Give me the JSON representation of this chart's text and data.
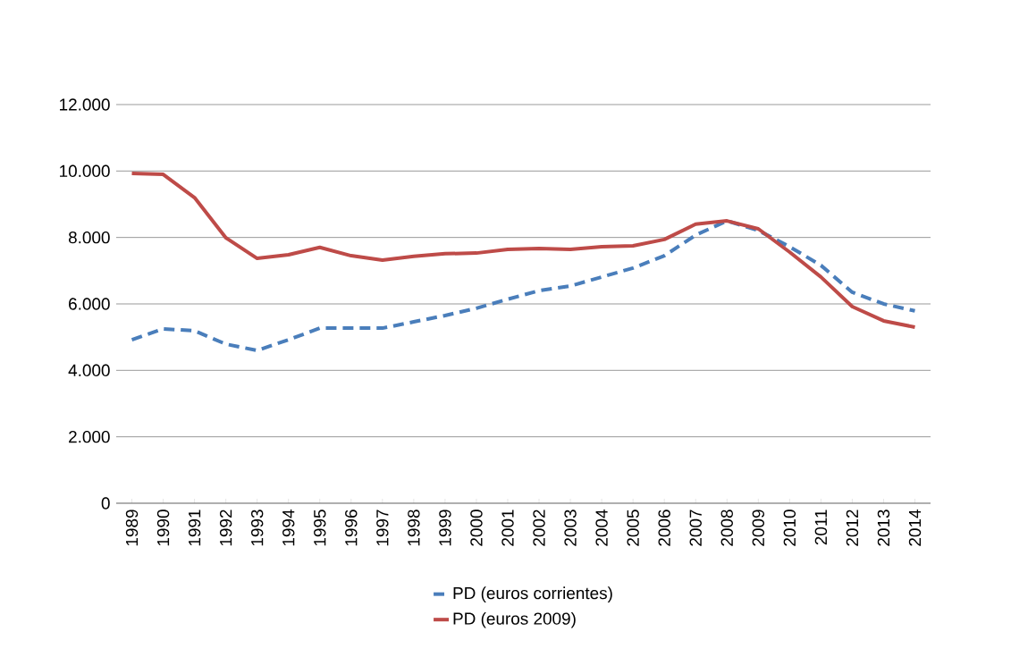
{
  "chart_data": {
    "type": "line",
    "categories": [
      "1989",
      "1990",
      "1991",
      "1992",
      "1993",
      "1994",
      "1995",
      "1996",
      "1997",
      "1998",
      "1999",
      "2000",
      "2001",
      "2002",
      "2003",
      "2004",
      "2005",
      "2006",
      "2007",
      "2008",
      "2009",
      "2010",
      "2011",
      "2012",
      "2013",
      "2014"
    ],
    "series": [
      {
        "name": "PD (euros corrientes)",
        "color": "#4a7ebb",
        "line_style": "dashed",
        "values": [
          4920,
          5250,
          5190,
          4790,
          4600,
          4920,
          5270,
          5270,
          5270,
          5460,
          5650,
          5870,
          6140,
          6400,
          6540,
          6810,
          7080,
          7450,
          8070,
          8500,
          8210,
          7720,
          7160,
          6350,
          6000,
          5790
        ]
      },
      {
        "name": "PD (euros 2009)",
        "color": "#be4b48",
        "line_style": "solid",
        "values": [
          9930,
          9900,
          9200,
          7990,
          7370,
          7480,
          7700,
          7450,
          7320,
          7430,
          7510,
          7530,
          7640,
          7670,
          7640,
          7720,
          7750,
          7940,
          8400,
          8500,
          8260,
          7560,
          6810,
          5920,
          5490,
          5300
        ]
      }
    ],
    "ylim": [
      0,
      12000
    ],
    "yticks": [
      0,
      {
        "value": 2000,
        "label": "2.000"
      },
      {
        "value": 4000,
        "label": "4.000"
      },
      {
        "value": 6000,
        "label": "6.000"
      },
      {
        "value": 8000,
        "label": "8.000"
      },
      {
        "value": 10000,
        "label": "10.000"
      },
      {
        "value": 12000,
        "label": "12.000"
      }
    ],
    "grid": "y",
    "legend": "bottom",
    "marker": "none"
  }
}
